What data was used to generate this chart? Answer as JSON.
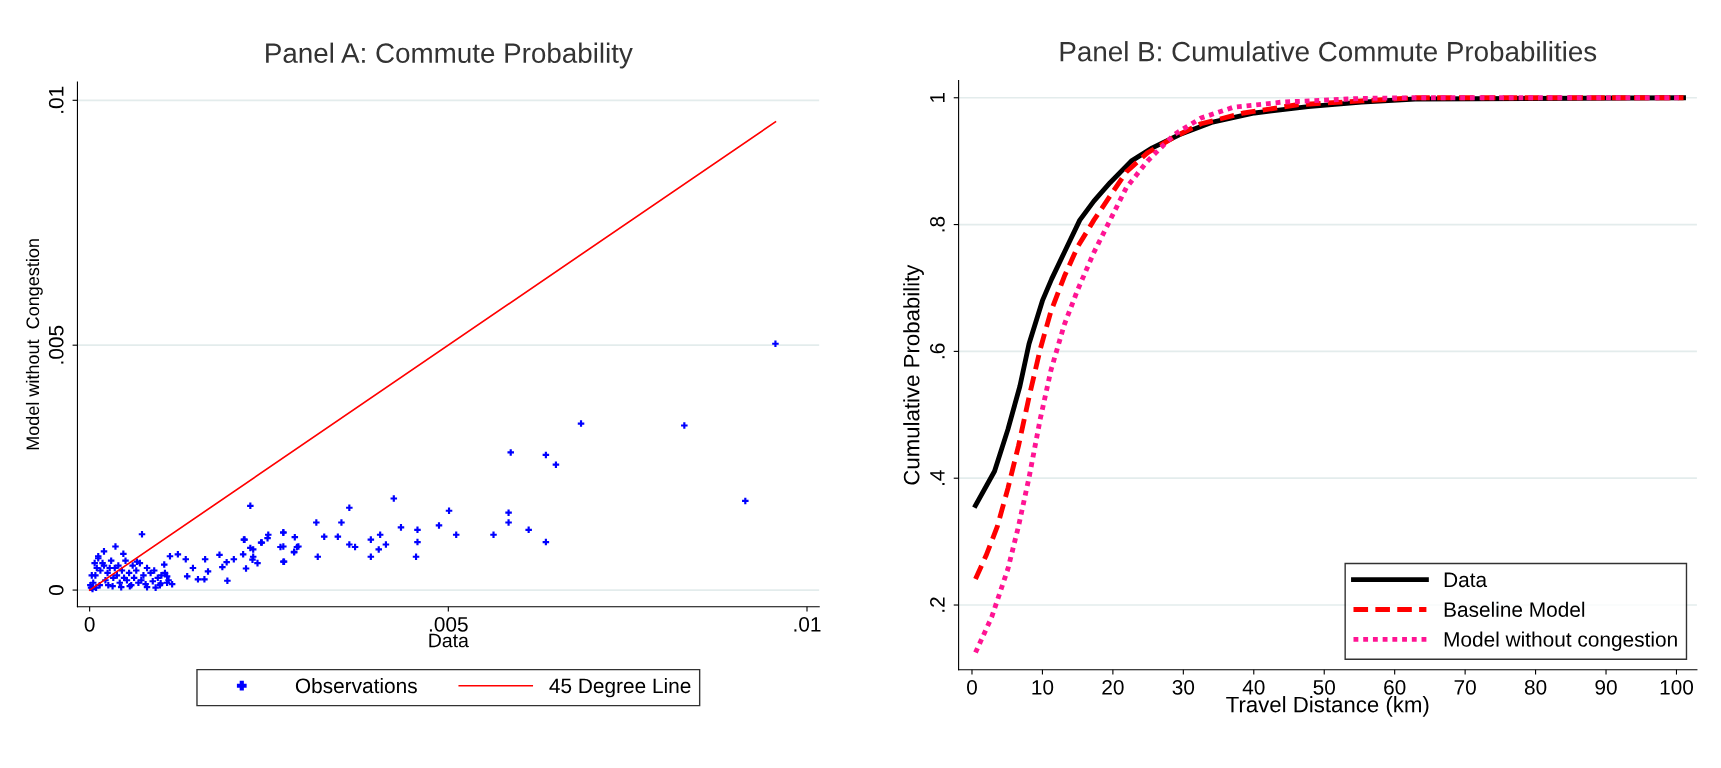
{
  "chart_data": [
    {
      "type": "scatter",
      "title": "Panel A: Commute Probability",
      "xlabel": "Data",
      "ylabel": "Model without  Congestion",
      "xlim": [
        -0.00017,
        0.01017
      ],
      "ylim": [
        -0.00034,
        0.01037
      ],
      "xticks": [
        {
          "value": 0,
          "label": "0"
        },
        {
          "value": 0.005,
          "label": ".005"
        },
        {
          "value": 0.01,
          "label": ".01"
        }
      ],
      "yticks": [
        {
          "value": 0,
          "label": "0"
        },
        {
          "value": 0.005,
          "label": ".005"
        },
        {
          "value": 0.01,
          "label": ".01"
        }
      ],
      "grid": "y",
      "legend": "bottom",
      "series": [
        {
          "name": "Observations",
          "type": "scatter",
          "marker": "cross",
          "color": "#0000ff",
          "x": [
            0.00956,
            0.00685,
            0.00829,
            0.00587,
            0.00636,
            0.0065,
            0.00914,
            0.00424,
            0.00224,
            0.00362,
            0.00501,
            0.00584,
            0.00584,
            0.00316,
            0.00351,
            0.00612,
            0.00563,
            0.00511,
            0.00487,
            0.00457,
            0.00434,
            0.00405,
            0.00392,
            0.00413,
            0.00403,
            0.00392,
            0.00457,
            0.00455,
            0.00636,
            0.00327,
            0.00346,
            0.00318,
            0.00362,
            0.0037,
            0.0027,
            0.00289,
            0.00285,
            0.0027,
            0.00266,
            0.00249,
            0.00239,
            0.00216,
            0.00228,
            0.00228,
            0.00073,
            0.00123,
            0.00134,
            0.00161,
            0.00136,
            0.00151,
            0.0016,
            0.00165,
            0.00144,
            0.00181,
            0.00185,
            0.00191,
            0.00192,
            0.00201,
            0.00214,
            0.00218,
            0.00224,
            0.00227,
            0.00234,
            0.0024,
            0.00248,
            0.00215,
            0.0027,
            0.0027,
            0.00271,
            0.00286,
            0.00291,
            0.00285,
            0.00112,
            0.00104,
            0.00099,
            0.00108,
            0.00036,
            0.0002,
            0.00012,
            0.00047,
            0.00066,
            2e-05,
            5e-05,
            8e-05,
            0.0001,
            0.00015,
            0.0002,
            0.00025,
            0.0003,
            0.00035,
            0.0004,
            0.00045,
            0.0005,
            0.00055,
            0.0006,
            0.00065,
            0.0007,
            0.00075,
            0.0008,
            0.00085,
            0.0009,
            0.00095,
            0.001,
            0.00105,
            0.0011,
            3e-05,
            7e-05,
            0.00012,
            0.00018,
            0.00022,
            0.00028,
            0.00033,
            0.00038,
            0.00042,
            0.00048,
            0.00052,
            0.00058,
            0.00062,
            0.00068,
            0.00072,
            0.00078,
            0.00088,
            0.00098,
            0.00108,
            0.00115,
            1e-05,
            4e-05,
            9e-05,
            0.00014,
            0.00026,
            0.00032,
            0.00044,
            0.00056,
            0.0008,
            0.00092
          ],
          "values": [
            0.00503,
            0.0034,
            0.00336,
            0.00281,
            0.00276,
            0.00256,
            0.00182,
            0.00187,
            0.00172,
            0.00168,
            0.00162,
            0.00158,
            0.00138,
            0.00138,
            0.00138,
            0.00123,
            0.00113,
            0.00113,
            0.00132,
            0.00123,
            0.00128,
            0.00113,
            0.00103,
            0.00093,
            0.00083,
            0.00068,
            0.00098,
            0.00068,
            0.00098,
            0.00109,
            0.00109,
            0.00068,
            0.00093,
            0.00088,
            0.00117,
            0.00088,
            0.00078,
            0.00058,
            0.00088,
            0.00113,
            0.00097,
            0.00103,
            0.00083,
            0.00068,
            0.00114,
            0.00073,
            0.00063,
            0.00063,
            0.00028,
            0.00022,
            0.00022,
            0.00038,
            0.00045,
            0.00072,
            0.00047,
            0.00057,
            0.00019,
            0.00063,
            0.00073,
            0.00044,
            0.00086,
            0.00062,
            0.00055,
            0.00097,
            0.00106,
            0.00103,
            0.00118,
            0.00089,
            0.00058,
            0.00108,
            0.00089,
            0.00077,
            0.00069,
            0.00052,
            0.00014,
            0.00028,
            0.00089,
            0.00079,
            0.00069,
            0.00074,
            0.00058,
            5e-05,
            0.00015,
            0.0003,
            0.00045,
            0.0004,
            0.0005,
            0.00035,
            0.0006,
            0.00045,
            0.0005,
            0.0004,
            0.0006,
            0.00035,
            0.0005,
            0.0004,
            0.00055,
            0.0003,
            0.00045,
            0.00035,
            0.0004,
            0.00025,
            0.0003,
            0.00035,
            0.0002,
            0.0003,
            0.00055,
            0.00065,
            0.00055,
            0.0002,
            0.00045,
            0.00025,
            0.0003,
            0.00015,
            0.00025,
            0.0002,
            0.0001,
            0.00025,
            0.00015,
            0.0002,
            0.00012,
            0.00018,
            0.0001,
            0.00015,
            0.00012,
            0.0001,
            2e-05,
            5e-05,
            0.0001,
            0.0001,
            8e-05,
            6e-05,
            8e-05,
            6e-05,
            5e-05
          ]
        },
        {
          "name": "45 Degree Line",
          "type": "line",
          "line_style": "solid",
          "color": "#ff0000",
          "x": [
            0,
            0.00956
          ],
          "values": [
            0,
            0.00956
          ]
        }
      ]
    },
    {
      "type": "line",
      "title": "Panel B: Cumulative Commute Probabilities",
      "xlabel": "Travel Distance (km)",
      "ylabel": "Cumulative Probability",
      "xlim": [
        -1.9,
        102.9
      ],
      "ylim": [
        0.098,
        1.027
      ],
      "xticks": [
        0,
        10,
        20,
        30,
        40,
        50,
        60,
        70,
        80,
        90,
        100
      ],
      "yticks": [
        {
          "value": 0.2,
          "label": ".2"
        },
        {
          "value": 0.4,
          "label": ".4"
        },
        {
          "value": 0.6,
          "label": ".6"
        },
        {
          "value": 0.8,
          "label": ".8"
        },
        {
          "value": 1,
          "label": "1"
        }
      ],
      "grid": "y",
      "legend": "bottom right",
      "series": [
        {
          "name": "Data",
          "line_style": "solid",
          "color": "#000000",
          "x": [
            0.5,
            3.2,
            5.1,
            6.8,
            8.1,
            10,
            11.3,
            13.1,
            15.3,
            17.3,
            19.6,
            22.6,
            25.6,
            29.5,
            34,
            40.1,
            47.7,
            55.3,
            62.9,
            101
          ],
          "values": [
            0.357,
            0.411,
            0.477,
            0.545,
            0.612,
            0.68,
            0.714,
            0.756,
            0.807,
            0.837,
            0.866,
            0.9,
            0.921,
            0.942,
            0.961,
            0.976,
            0.986,
            0.993,
            0.998,
            1
          ]
        },
        {
          "name": "Baseline Model",
          "line_style": "dashed",
          "color": "#ff0000",
          "x": [
            0.5,
            2,
            3.6,
            5.1,
            6.6,
            8.1,
            9.7,
            11.2,
            13.1,
            15,
            17.3,
            19.6,
            21.9,
            24.9,
            28.7,
            32.5,
            38.6,
            46.2,
            55.3,
            62.9,
            101
          ],
          "values": [
            0.241,
            0.278,
            0.324,
            0.384,
            0.451,
            0.528,
            0.604,
            0.663,
            0.718,
            0.765,
            0.807,
            0.845,
            0.883,
            0.913,
            0.938,
            0.959,
            0.976,
            0.989,
            0.995,
            1,
            1
          ]
        },
        {
          "name": "Model without congestion",
          "line_style": "dotted",
          "color": "#ff1493",
          "x": [
            0.5,
            2.8,
            5.1,
            6.6,
            8.1,
            9.7,
            11.2,
            13.1,
            15,
            17.3,
            19.6,
            21.9,
            24.9,
            28.7,
            32.5,
            37.1,
            43.9,
            55.3,
            62.9,
            101
          ],
          "values": [
            0.125,
            0.181,
            0.257,
            0.324,
            0.401,
            0.494,
            0.57,
            0.642,
            0.697,
            0.756,
            0.807,
            0.858,
            0.9,
            0.942,
            0.968,
            0.985,
            0.993,
            0.999,
            1,
            1
          ]
        }
      ]
    }
  ]
}
